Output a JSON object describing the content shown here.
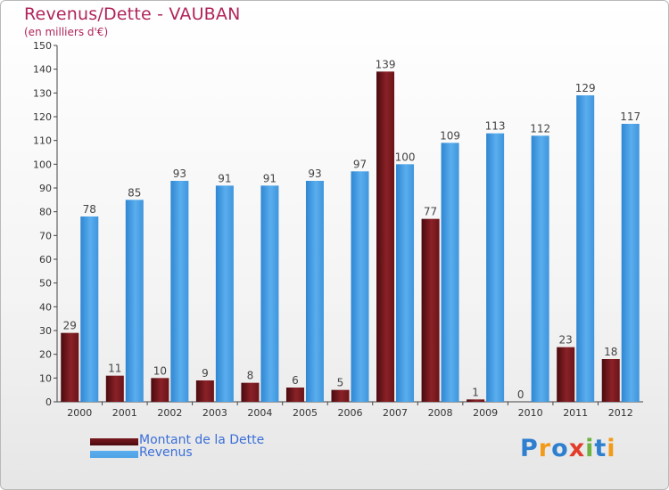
{
  "chart_data": {
    "type": "bar",
    "title": "Revenus/Dette - VAUBAN",
    "subtitle": "(en milliers d'€)",
    "categories": [
      "2000",
      "2001",
      "2002",
      "2003",
      "2004",
      "2005",
      "2006",
      "2007",
      "2008",
      "2009",
      "2010",
      "2011",
      "2012"
    ],
    "series": [
      {
        "name": "Montant de la Dette",
        "color": "#7a1a20",
        "values": [
          29,
          11,
          10,
          9,
          8,
          6,
          5,
          139,
          77,
          1,
          0,
          23,
          18
        ]
      },
      {
        "name": "Revenus",
        "color": "#4fa3e6",
        "values": [
          78,
          85,
          93,
          91,
          91,
          93,
          97,
          100,
          109,
          113,
          112,
          129,
          117
        ]
      }
    ],
    "ylim": [
      0,
      150
    ],
    "yticks": [
      0,
      10,
      20,
      30,
      40,
      50,
      60,
      70,
      80,
      90,
      100,
      110,
      120,
      130,
      140,
      150
    ],
    "grid": false,
    "legend_position": "bottom-left"
  },
  "logo": {
    "text": "Proxiti",
    "letters": [
      "P",
      "r",
      "o",
      "x",
      "i",
      "t",
      "i"
    ],
    "colors": [
      "#2f7fd0",
      "#f29a1a",
      "#2f7fd0",
      "#e23b2a",
      "#6cb33f",
      "#2f7fd0",
      "#f29a1a"
    ]
  }
}
